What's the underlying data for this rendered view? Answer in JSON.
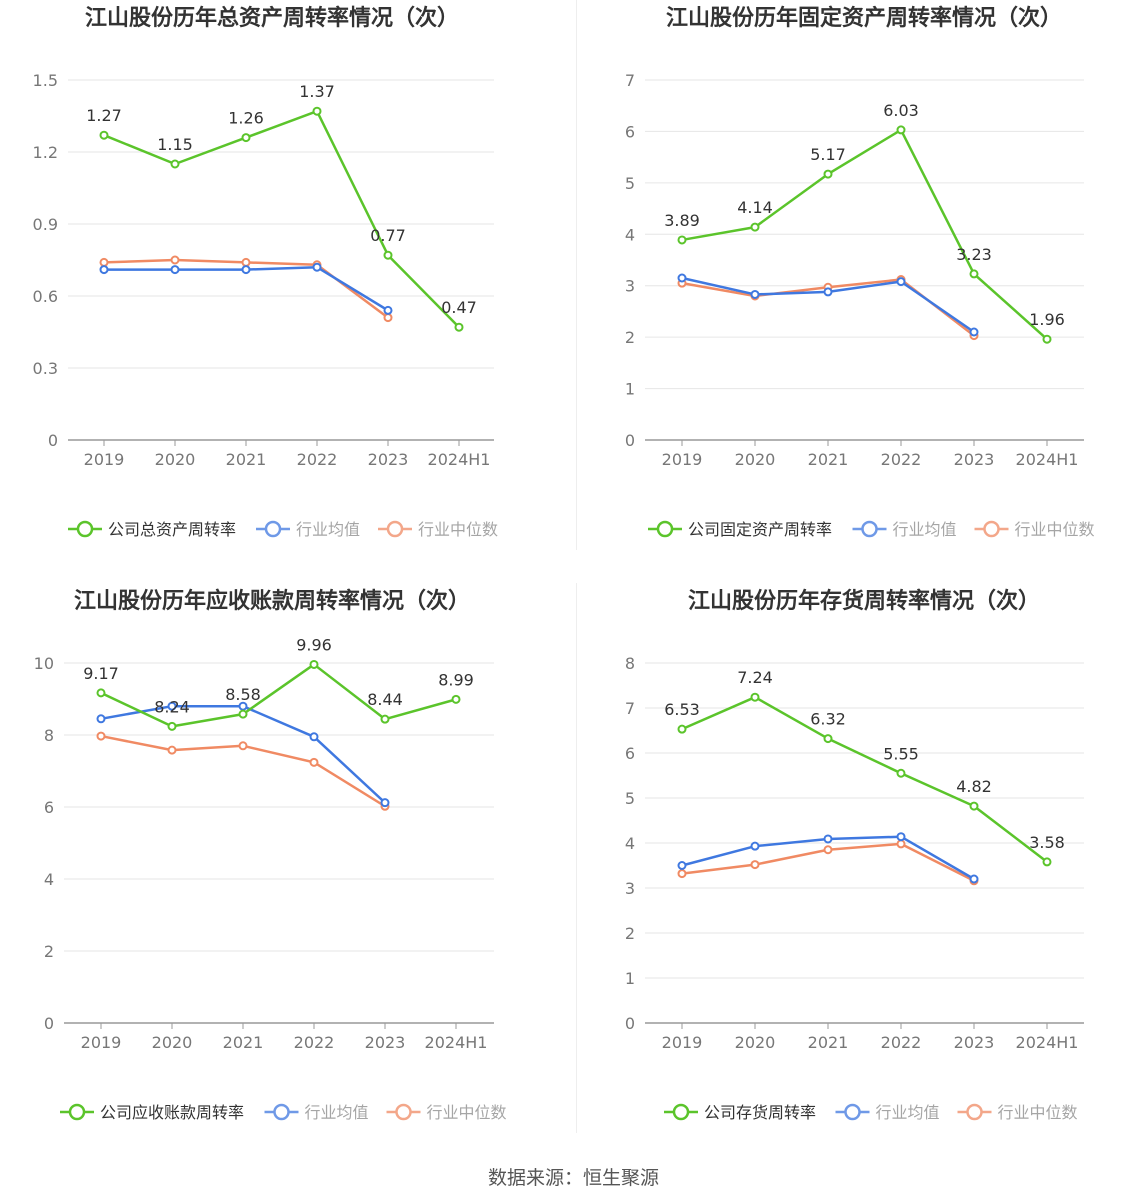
{
  "colors": {
    "company": "#5bc42b",
    "industry_avg": "#3f78e0",
    "industry_median": "#f08a63",
    "grid": "#e6e6e6",
    "axis": "#999999",
    "title": "#333333"
  },
  "source": "数据来源：恒生聚源",
  "chart_data": [
    {
      "type": "line",
      "title": "江山股份历年总资产周转率情况（次）",
      "categories": [
        "2019",
        "2020",
        "2021",
        "2022",
        "2023",
        "2024H1"
      ],
      "ylim": [
        0,
        1.5
      ],
      "yticks": [
        "0",
        "0.3",
        "0.6",
        "0.9",
        "1.2",
        "1.5"
      ],
      "grid": true,
      "legend_position": "bottom",
      "series": [
        {
          "name": "公司总资产周转率",
          "values": [
            1.27,
            1.15,
            1.26,
            1.37,
            0.77,
            0.47
          ],
          "labels": [
            "1.27",
            "1.15",
            "1.26",
            "1.37",
            "0.77",
            "0.47"
          ]
        },
        {
          "name": "行业均值",
          "values": [
            0.71,
            0.71,
            0.71,
            0.72,
            0.54,
            null
          ]
        },
        {
          "name": "行业中位数",
          "values": [
            0.74,
            0.75,
            0.74,
            0.73,
            0.51,
            null
          ]
        }
      ]
    },
    {
      "type": "line",
      "title": "江山股份历年固定资产周转率情况（次）",
      "categories": [
        "2019",
        "2020",
        "2021",
        "2022",
        "2023",
        "2024H1"
      ],
      "ylim": [
        0,
        7
      ],
      "yticks": [
        "0",
        "1",
        "2",
        "3",
        "4",
        "5",
        "6",
        "7"
      ],
      "grid": true,
      "legend_position": "bottom",
      "series": [
        {
          "name": "公司固定资产周转率",
          "values": [
            3.89,
            4.14,
            5.17,
            6.03,
            3.23,
            1.96
          ],
          "labels": [
            "3.89",
            "4.14",
            "5.17",
            "6.03",
            "3.23",
            "1.96"
          ]
        },
        {
          "name": "行业均值",
          "values": [
            3.15,
            2.83,
            2.88,
            3.08,
            2.1,
            null
          ]
        },
        {
          "name": "行业中位数",
          "values": [
            3.05,
            2.8,
            2.97,
            3.12,
            2.03,
            null
          ]
        }
      ]
    },
    {
      "type": "line",
      "title": "江山股份历年应收账款周转率情况（次）",
      "categories": [
        "2019",
        "2020",
        "2021",
        "2022",
        "2023",
        "2024H1"
      ],
      "ylim": [
        0,
        10
      ],
      "yticks": [
        "0",
        "2",
        "4",
        "6",
        "8",
        "10"
      ],
      "grid": true,
      "legend_position": "bottom",
      "series": [
        {
          "name": "公司应收账款周转率",
          "values": [
            9.17,
            8.24,
            8.58,
            9.96,
            8.44,
            8.99
          ],
          "labels": [
            "9.17",
            "8.24",
            "8.58",
            "9.96",
            "8.44",
            "8.99"
          ]
        },
        {
          "name": "行业均值",
          "values": [
            8.45,
            8.8,
            8.8,
            7.95,
            6.12,
            null
          ]
        },
        {
          "name": "行业中位数",
          "values": [
            7.97,
            7.58,
            7.7,
            7.24,
            6.02,
            null
          ]
        }
      ]
    },
    {
      "type": "line",
      "title": "江山股份历年存货周转率情况（次）",
      "categories": [
        "2019",
        "2020",
        "2021",
        "2022",
        "2023",
        "2024H1"
      ],
      "ylim": [
        0,
        8
      ],
      "yticks": [
        "0",
        "1",
        "2",
        "3",
        "4",
        "5",
        "6",
        "7",
        "8"
      ],
      "grid": true,
      "legend_position": "bottom",
      "series": [
        {
          "name": "公司存货周转率",
          "values": [
            6.53,
            7.24,
            6.32,
            5.55,
            4.82,
            3.58
          ],
          "labels": [
            "6.53",
            "7.24",
            "6.32",
            "5.55",
            "4.82",
            "3.58"
          ]
        },
        {
          "name": "行业均值",
          "values": [
            3.5,
            3.93,
            4.09,
            4.14,
            3.2,
            null
          ]
        },
        {
          "name": "行业中位数",
          "values": [
            3.32,
            3.52,
            3.85,
            3.98,
            3.16,
            null
          ]
        }
      ]
    }
  ]
}
